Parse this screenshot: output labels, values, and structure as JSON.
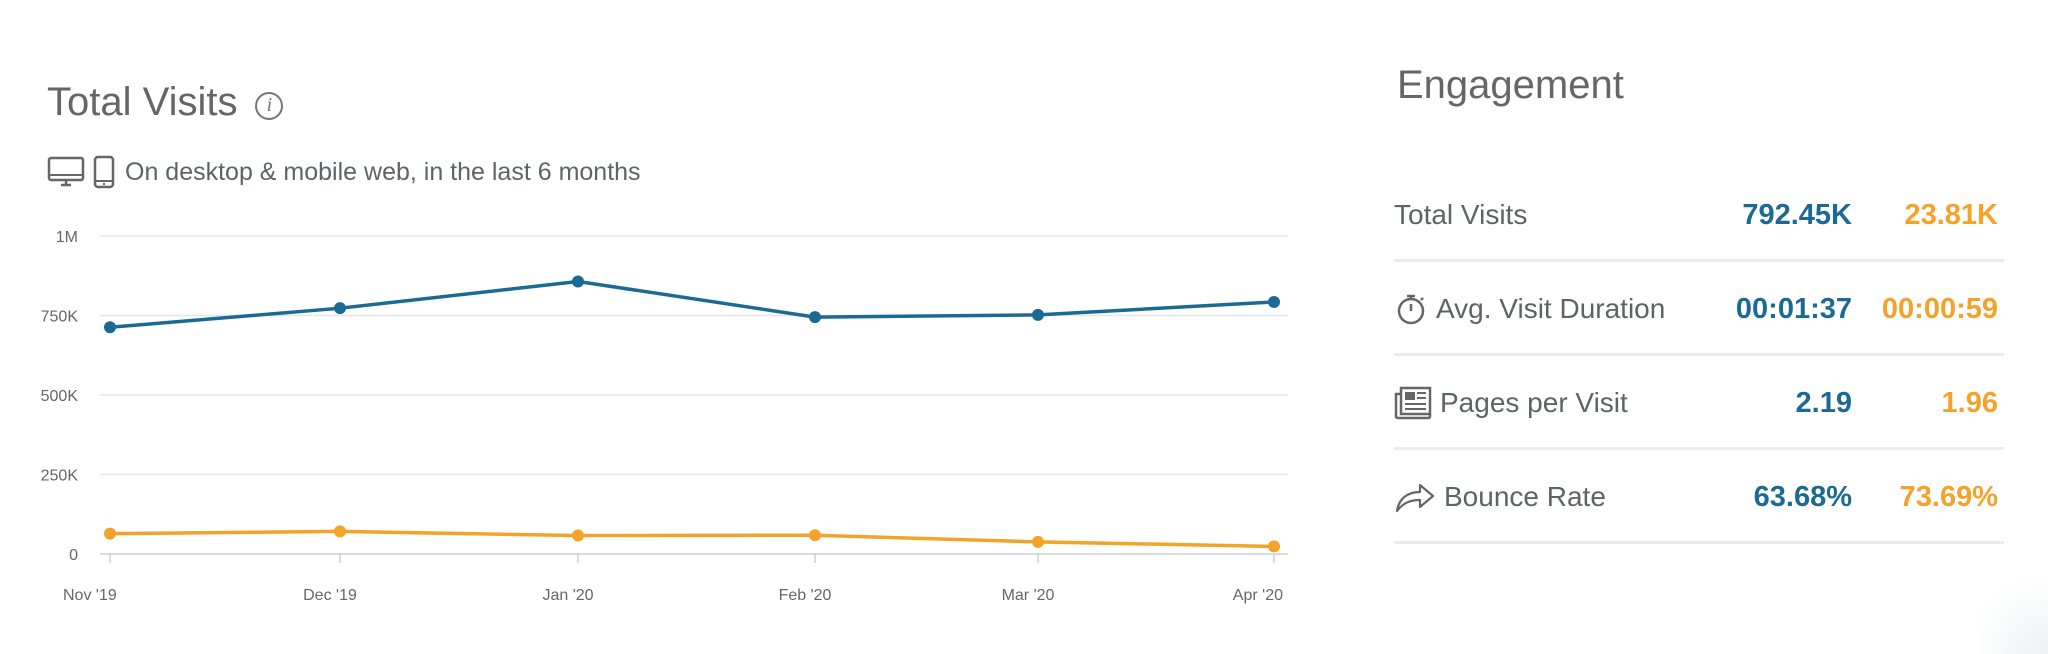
{
  "chart_data": {
    "type": "line",
    "title": "Total Visits",
    "subtitle": "On desktop & mobile web, in the last 6 months",
    "categories": [
      "Nov '19",
      "Dec '19",
      "Jan '20",
      "Feb '20",
      "Mar '20",
      "Apr '20"
    ],
    "series": [
      {
        "color": "#1a6a94",
        "values": [
          713000,
          773000,
          857000,
          745000,
          752000,
          792450
        ]
      },
      {
        "color": "#f3a22a",
        "values": [
          64000,
          71000,
          58000,
          59000,
          38000,
          23810
        ]
      }
    ],
    "ylim": [
      0,
      1000000
    ],
    "yticks": [
      {
        "value": 0,
        "label": "0"
      },
      {
        "value": 250000,
        "label": "250K"
      },
      {
        "value": 500000,
        "label": "500K"
      },
      {
        "value": 750000,
        "label": "750K"
      },
      {
        "value": 1000000,
        "label": "1M"
      }
    ],
    "grid": true
  },
  "engagement": {
    "title": "Engagement",
    "metrics": [
      {
        "label": "Total Visits",
        "icon": "",
        "v1": "792.45K",
        "v2": "23.81K"
      },
      {
        "label": "Avg. Visit Duration",
        "icon": "stopwatch-icon",
        "v1": "00:01:37",
        "v2": "00:00:59"
      },
      {
        "label": "Pages per Visit",
        "icon": "pages-icon",
        "v1": "2.19",
        "v2": "1.96"
      },
      {
        "label": "Bounce Rate",
        "icon": "bounce-arrow-icon",
        "v1": "63.68%",
        "v2": "73.69%"
      }
    ]
  },
  "colors": {
    "site1": "#1a6a94",
    "site2": "#f3a22a",
    "grid": "#e6e6e6",
    "axis": "#cfcfcf"
  }
}
